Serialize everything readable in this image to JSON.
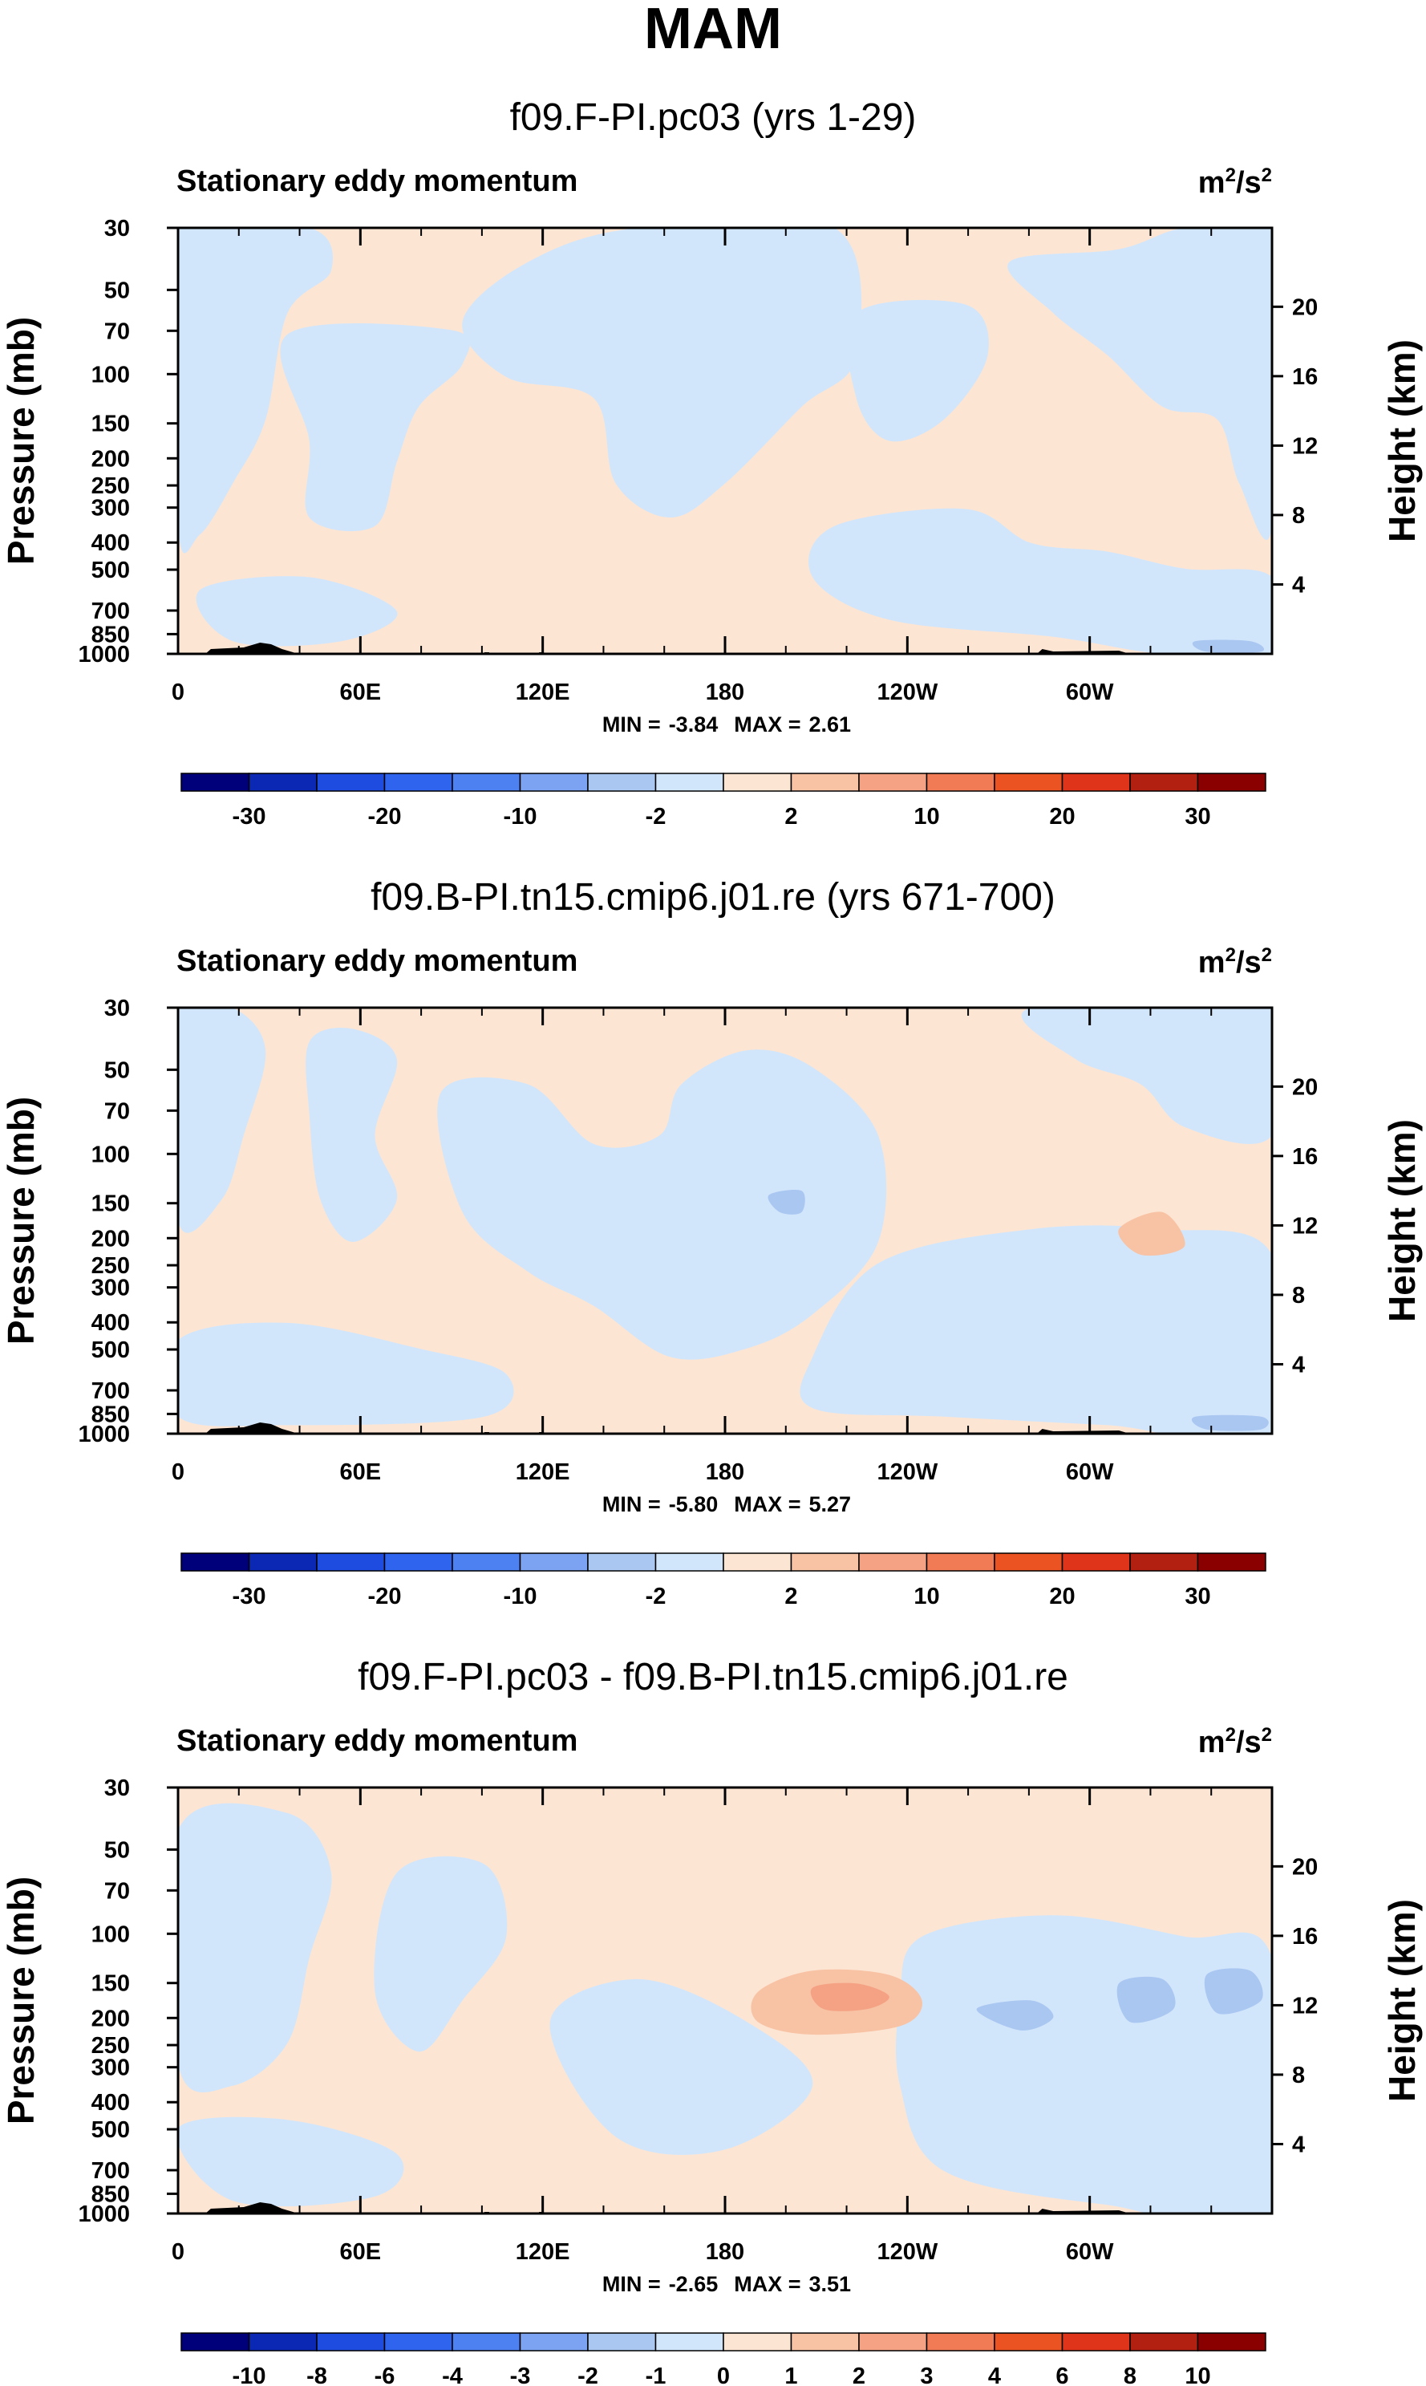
{
  "title": "MAM",
  "units": {
    "base": "m",
    "exp": "2",
    "sep": "/s",
    "exp2": "2"
  },
  "colors": {
    "pos_light": "#fde5d3",
    "pos_mid": "#f8c2a4",
    "pos_strong": "#f4a283",
    "neg_light": "#d2e6fb",
    "neg_mid": "#aac7f2",
    "topography": "#000000"
  },
  "palette": [
    "#00007a",
    "#0a28b3",
    "#1e4ce0",
    "#2f64ef",
    "#4d80f0",
    "#7ba3f2",
    "#aac7f2",
    "#d2e6fb",
    "#fde5d3",
    "#f8c2a4",
    "#f4a283",
    "#f07b55",
    "#ec5323",
    "#e0341a",
    "#b22012",
    "#8a0000"
  ],
  "chart_data": [
    {
      "type": "contour",
      "title": "f09.F-PI.pc03 (yrs 1-29)",
      "subtitle": "Stationary eddy momentum",
      "ylabel": "Pressure (mb)",
      "ylabel_right": "Height (km)",
      "x_ticks": [
        "0",
        "60E",
        "120E",
        "180",
        "120W",
        "60W"
      ],
      "y_ticks": [
        "30",
        "50",
        "70",
        "100",
        "150",
        "200",
        "250",
        "300",
        "400",
        "500",
        "700",
        "850",
        "1000"
      ],
      "y_right_ticks": [
        "20",
        "16",
        "12",
        "8",
        "4"
      ],
      "min": "-3.84",
      "max": "2.61",
      "min_label": "MIN =",
      "max_label": "MAX =",
      "colorbar_labels": [
        "-30",
        "-20",
        "-10",
        "-2",
        "2",
        "10",
        "20",
        "30"
      ]
    },
    {
      "type": "contour",
      "title": "f09.B-PI.tn15.cmip6.j01.re (yrs 671-700)",
      "subtitle": "Stationary eddy momentum",
      "ylabel": "Pressure (mb)",
      "ylabel_right": "Height (km)",
      "x_ticks": [
        "0",
        "60E",
        "120E",
        "180",
        "120W",
        "60W"
      ],
      "y_ticks": [
        "30",
        "50",
        "70",
        "100",
        "150",
        "200",
        "250",
        "300",
        "400",
        "500",
        "700",
        "850",
        "1000"
      ],
      "y_right_ticks": [
        "20",
        "16",
        "12",
        "8",
        "4"
      ],
      "min": "-5.80",
      "max": "5.27",
      "min_label": "MIN =",
      "max_label": "MAX =",
      "colorbar_labels": [
        "-30",
        "-20",
        "-10",
        "-2",
        "2",
        "10",
        "20",
        "30"
      ]
    },
    {
      "type": "contour",
      "title": "f09.F-PI.pc03 - f09.B-PI.tn15.cmip6.j01.re",
      "subtitle": "Stationary eddy momentum",
      "ylabel": "Pressure (mb)",
      "ylabel_right": "Height (km)",
      "x_ticks": [
        "0",
        "60E",
        "120E",
        "180",
        "120W",
        "60W"
      ],
      "y_ticks": [
        "30",
        "50",
        "70",
        "100",
        "150",
        "200",
        "250",
        "300",
        "400",
        "500",
        "700",
        "850",
        "1000"
      ],
      "y_right_ticks": [
        "20",
        "16",
        "12",
        "8",
        "4"
      ],
      "min": "-2.65",
      "max": "3.51",
      "min_label": "MIN =",
      "max_label": "MAX =",
      "colorbar_labels": [
        "-10",
        "-8",
        "-6",
        "-4",
        "-3",
        "-2",
        "-1",
        "0",
        "1",
        "2",
        "3",
        "4",
        "6",
        "8",
        "10"
      ]
    }
  ]
}
